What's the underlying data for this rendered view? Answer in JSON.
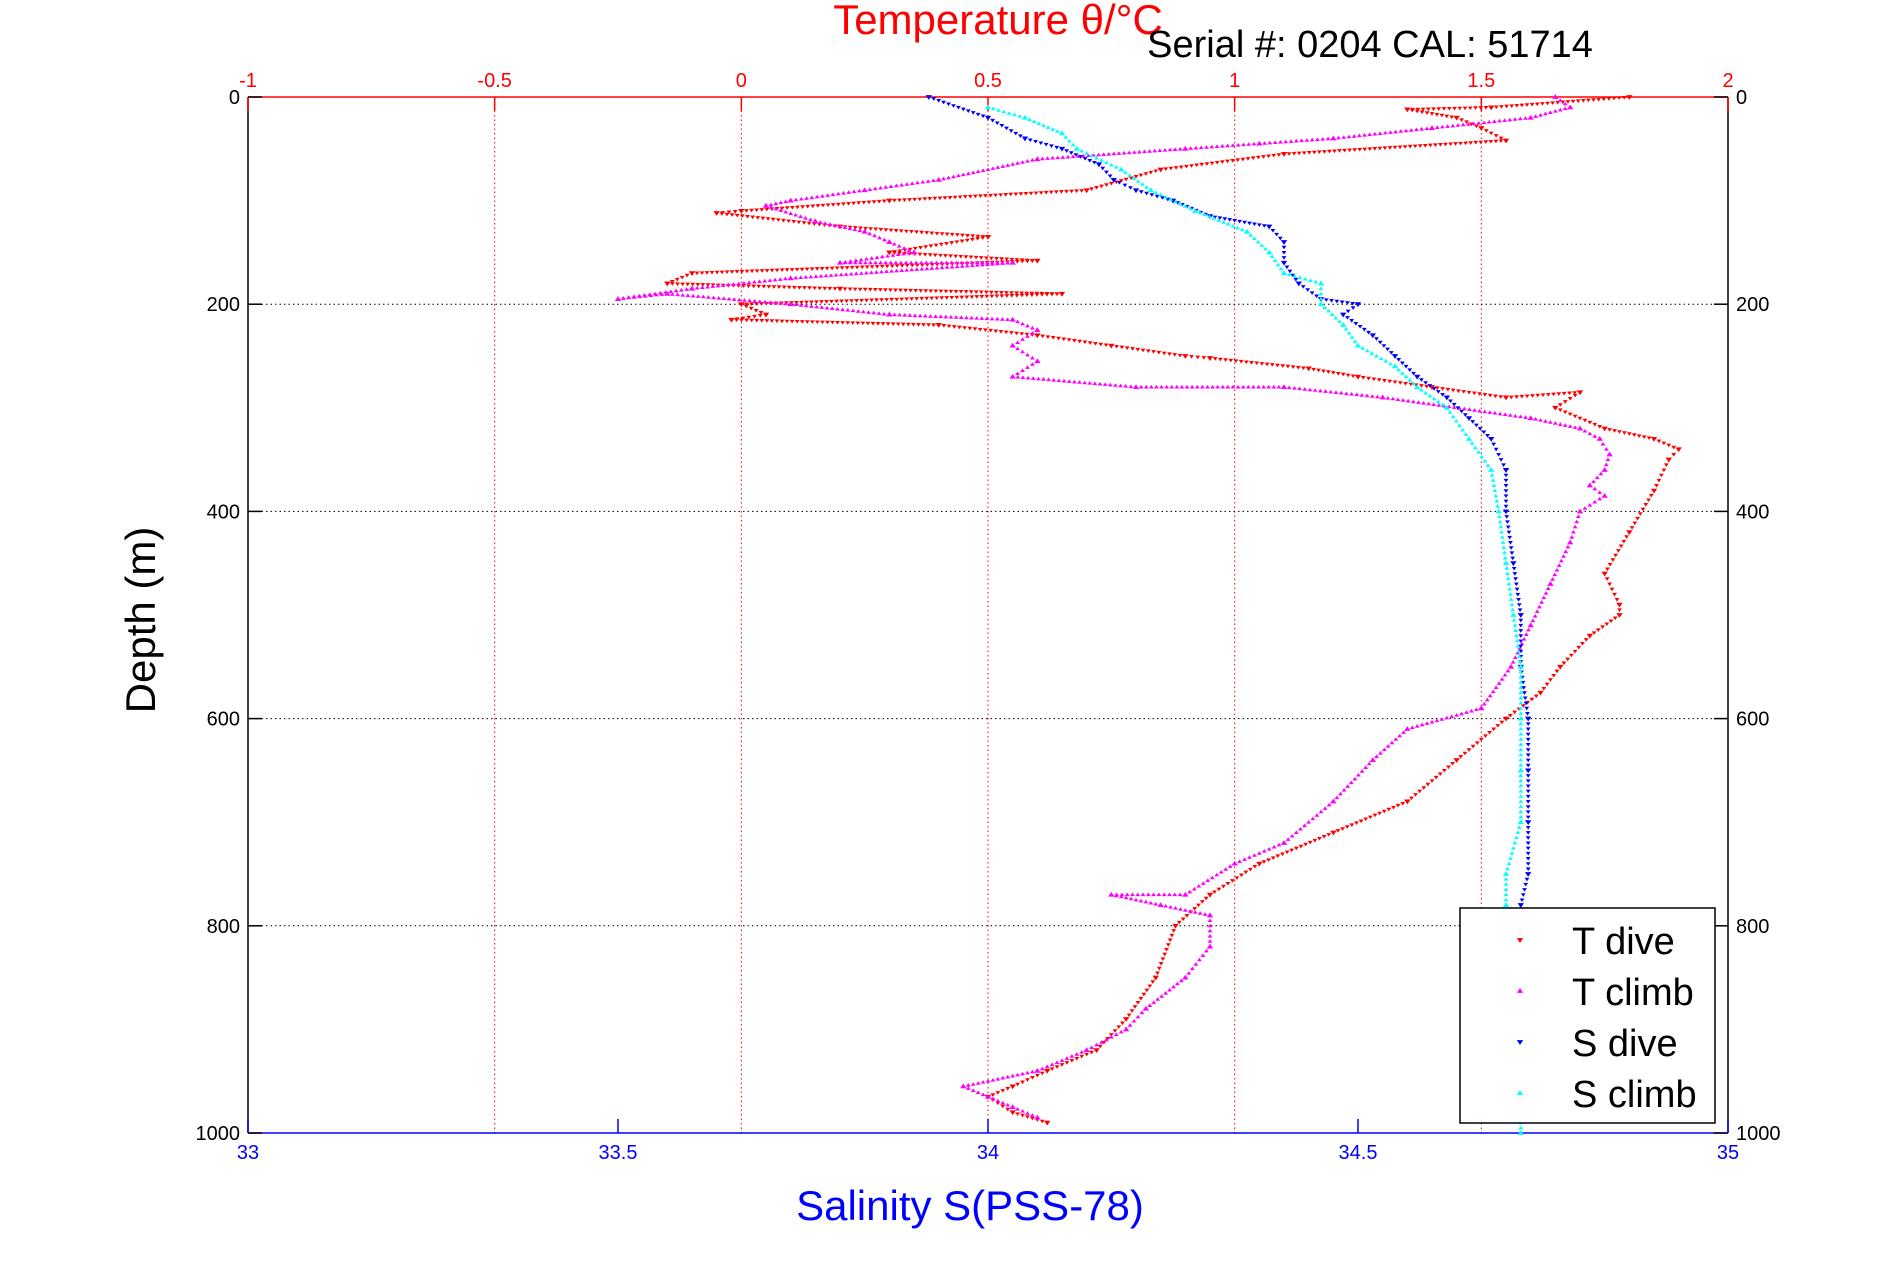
{
  "chart_data": {
    "type": "scatter",
    "title": "Serial #: 0204  CAL: 51714",
    "top_axis": {
      "label": "Temperature θ/°C",
      "range": [
        -1,
        2
      ],
      "ticks": [
        -1,
        -0.5,
        0,
        0.5,
        1,
        1.5,
        2
      ],
      "tick_labels": [
        "-1",
        "-0.5",
        "0",
        "0.5",
        "1",
        "1.5",
        "2"
      ],
      "color": "#ff0000",
      "grid": true
    },
    "bottom_axis": {
      "label": "Salinity S(PSS-78)",
      "range": [
        33,
        35
      ],
      "ticks": [
        33,
        33.5,
        34,
        34.5,
        35
      ],
      "tick_labels": [
        "33",
        "33.5",
        "34",
        "34.5",
        "35"
      ],
      "color": "#0000ff"
    },
    "y_axis": {
      "label": "Depth (m)",
      "range": [
        0,
        1000
      ],
      "reversed": true,
      "ticks": [
        0,
        200,
        400,
        600,
        800,
        1000
      ],
      "tick_labels": [
        "0",
        "200",
        "400",
        "600",
        "800",
        "1000"
      ],
      "grid": true
    },
    "legend": {
      "placement": "bottom-right",
      "entries": [
        "T dive",
        "T climb",
        "S dive",
        "S climb"
      ]
    },
    "series": [
      {
        "name": "T dive",
        "axis": "temperature",
        "color": "#ff0000",
        "marker": "triangle-down",
        "points": [
          [
            1.8,
            0
          ],
          [
            1.52,
            10
          ],
          [
            1.35,
            12
          ],
          [
            1.45,
            20
          ],
          [
            1.5,
            30
          ],
          [
            1.55,
            42
          ],
          [
            1.1,
            55
          ],
          [
            0.85,
            70
          ],
          [
            0.7,
            90
          ],
          [
            0.3,
            100
          ],
          [
            0.0,
            110
          ],
          [
            -0.05,
            112
          ],
          [
            0.2,
            125
          ],
          [
            0.5,
            135
          ],
          [
            0.3,
            150
          ],
          [
            0.6,
            158
          ],
          [
            -0.1,
            170
          ],
          [
            -0.15,
            180
          ],
          [
            0.2,
            185
          ],
          [
            0.65,
            190
          ],
          [
            0.0,
            200
          ],
          [
            0.05,
            210
          ],
          [
            -0.02,
            215
          ],
          [
            0.4,
            220
          ],
          [
            0.6,
            230
          ],
          [
            0.75,
            240
          ],
          [
            0.9,
            250
          ],
          [
            0.95,
            252
          ],
          [
            1.15,
            262
          ],
          [
            1.25,
            270
          ],
          [
            1.4,
            280
          ],
          [
            1.55,
            290
          ],
          [
            1.7,
            285
          ],
          [
            1.65,
            300
          ],
          [
            1.75,
            320
          ],
          [
            1.85,
            330
          ],
          [
            1.9,
            340
          ],
          [
            1.88,
            350
          ],
          [
            1.85,
            380
          ],
          [
            1.8,
            420
          ],
          [
            1.75,
            460
          ],
          [
            1.78,
            490
          ],
          [
            1.78,
            500
          ],
          [
            1.72,
            520
          ],
          [
            1.66,
            550
          ],
          [
            1.62,
            575
          ],
          [
            1.55,
            600
          ],
          [
            1.45,
            640
          ],
          [
            1.35,
            680
          ],
          [
            1.2,
            710
          ],
          [
            1.05,
            740
          ],
          [
            0.95,
            770
          ],
          [
            0.88,
            800
          ],
          [
            0.84,
            850
          ],
          [
            0.78,
            890
          ],
          [
            0.72,
            920
          ],
          [
            0.62,
            940
          ],
          [
            0.55,
            955
          ],
          [
            0.5,
            965
          ],
          [
            0.55,
            980
          ],
          [
            0.62,
            990
          ]
        ]
      },
      {
        "name": "T climb",
        "axis": "temperature",
        "color": "#ff00ff",
        "marker": "triangle-up",
        "points": [
          [
            1.65,
            0
          ],
          [
            1.68,
            10
          ],
          [
            1.6,
            20
          ],
          [
            1.4,
            30
          ],
          [
            1.2,
            40
          ],
          [
            1.05,
            45
          ],
          [
            0.9,
            50
          ],
          [
            0.6,
            60
          ],
          [
            0.4,
            80
          ],
          [
            0.25,
            90
          ],
          [
            0.1,
            100
          ],
          [
            0.05,
            105
          ],
          [
            0.15,
            120
          ],
          [
            0.25,
            130
          ],
          [
            0.3,
            140
          ],
          [
            0.35,
            150
          ],
          [
            0.2,
            160
          ],
          [
            0.55,
            160
          ],
          [
            0.1,
            175
          ],
          [
            -0.1,
            185
          ],
          [
            -0.25,
            195
          ],
          [
            -0.15,
            190
          ],
          [
            0.1,
            200
          ],
          [
            0.3,
            210
          ],
          [
            0.55,
            215
          ],
          [
            0.6,
            225
          ],
          [
            0.55,
            240
          ],
          [
            0.6,
            255
          ],
          [
            0.55,
            270
          ],
          [
            0.8,
            280
          ],
          [
            1.1,
            280
          ],
          [
            1.3,
            290
          ],
          [
            1.6,
            310
          ],
          [
            1.7,
            320
          ],
          [
            1.74,
            330
          ],
          [
            1.76,
            345
          ],
          [
            1.75,
            360
          ],
          [
            1.72,
            375
          ],
          [
            1.75,
            385
          ],
          [
            1.7,
            400
          ],
          [
            1.68,
            430
          ],
          [
            1.64,
            470
          ],
          [
            1.6,
            510
          ],
          [
            1.56,
            550
          ],
          [
            1.5,
            590
          ],
          [
            1.35,
            610
          ],
          [
            1.28,
            640
          ],
          [
            1.2,
            680
          ],
          [
            1.1,
            720
          ],
          [
            1.0,
            740
          ],
          [
            0.9,
            770
          ],
          [
            0.75,
            770
          ],
          [
            0.85,
            780
          ],
          [
            0.95,
            790
          ],
          [
            0.95,
            820
          ],
          [
            0.9,
            850
          ],
          [
            0.82,
            880
          ],
          [
            0.78,
            900
          ],
          [
            0.7,
            920
          ],
          [
            0.6,
            940
          ],
          [
            0.45,
            955
          ],
          [
            0.5,
            965
          ],
          [
            0.55,
            975
          ],
          [
            0.6,
            985
          ]
        ]
      },
      {
        "name": "S dive",
        "axis": "salinity",
        "color": "#0000ff",
        "marker": "triangle-down",
        "points": [
          [
            33.92,
            0
          ],
          [
            34.0,
            20
          ],
          [
            34.05,
            40
          ],
          [
            34.1,
            50
          ],
          [
            34.15,
            65
          ],
          [
            34.17,
            80
          ],
          [
            34.2,
            90
          ],
          [
            34.25,
            100
          ],
          [
            34.3,
            115
          ],
          [
            34.38,
            125
          ],
          [
            34.4,
            140
          ],
          [
            34.4,
            160
          ],
          [
            34.42,
            180
          ],
          [
            34.45,
            195
          ],
          [
            34.5,
            200
          ],
          [
            34.48,
            210
          ],
          [
            34.52,
            230
          ],
          [
            34.55,
            250
          ],
          [
            34.58,
            270
          ],
          [
            34.62,
            290
          ],
          [
            34.65,
            310
          ],
          [
            34.68,
            330
          ],
          [
            34.7,
            360
          ],
          [
            34.7,
            400
          ],
          [
            34.71,
            450
          ],
          [
            34.72,
            500
          ],
          [
            34.72,
            550
          ],
          [
            34.73,
            600
          ],
          [
            34.73,
            650
          ],
          [
            34.73,
            700
          ],
          [
            34.73,
            750
          ],
          [
            34.72,
            780
          ]
        ]
      },
      {
        "name": "S climb",
        "axis": "salinity",
        "color": "#00ffff",
        "marker": "triangle-up",
        "points": [
          [
            34.0,
            10
          ],
          [
            34.05,
            20
          ],
          [
            34.1,
            35
          ],
          [
            34.12,
            50
          ],
          [
            34.18,
            70
          ],
          [
            34.22,
            90
          ],
          [
            34.28,
            110
          ],
          [
            34.35,
            130
          ],
          [
            34.38,
            150
          ],
          [
            34.4,
            170
          ],
          [
            34.45,
            180
          ],
          [
            34.45,
            200
          ],
          [
            34.48,
            220
          ],
          [
            34.5,
            240
          ],
          [
            34.55,
            260
          ],
          [
            34.58,
            280
          ],
          [
            34.62,
            300
          ],
          [
            34.65,
            330
          ],
          [
            34.68,
            360
          ],
          [
            34.69,
            400
          ],
          [
            34.7,
            450
          ],
          [
            34.71,
            500
          ],
          [
            34.72,
            550
          ],
          [
            34.72,
            600
          ],
          [
            34.72,
            650
          ],
          [
            34.72,
            700
          ],
          [
            34.7,
            750
          ],
          [
            34.7,
            780
          ],
          [
            34.72,
            790
          ],
          [
            34.72,
            1000
          ]
        ]
      }
    ]
  }
}
